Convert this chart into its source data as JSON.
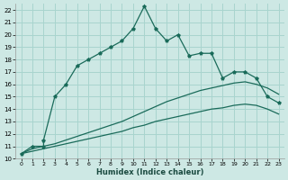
{
  "xlabel": "Humidex (Indice chaleur)",
  "bg_color": "#cde8e4",
  "grid_color": "#a8d4ce",
  "line_color": "#1a6b5a",
  "xlim": [
    -0.5,
    23.5
  ],
  "ylim": [
    10.0,
    22.5
  ],
  "xticks": [
    0,
    1,
    2,
    3,
    4,
    5,
    6,
    7,
    8,
    9,
    10,
    11,
    12,
    13,
    14,
    15,
    16,
    17,
    18,
    19,
    20,
    21,
    22,
    23
  ],
  "yticks": [
    10,
    11,
    12,
    13,
    14,
    15,
    16,
    17,
    18,
    19,
    20,
    21,
    22
  ],
  "line1_x": [
    0,
    1,
    2,
    2,
    3,
    4,
    5,
    6,
    7,
    8,
    9,
    10,
    11,
    12,
    13,
    14,
    15,
    16,
    17,
    18,
    19,
    20,
    21,
    22,
    23
  ],
  "line1_y": [
    10.4,
    11.0,
    11.0,
    11.5,
    15.0,
    16.0,
    17.5,
    18.0,
    18.5,
    19.0,
    19.5,
    20.5,
    22.3,
    20.5,
    19.5,
    20.0,
    18.3,
    18.5,
    18.5,
    16.5,
    17.0,
    17.0,
    16.5,
    15.0,
    14.5
  ],
  "line2_x": [
    0,
    1,
    2,
    3,
    4,
    5,
    6,
    7,
    8,
    9,
    10,
    11,
    12,
    13,
    14,
    15,
    16,
    17,
    18,
    19,
    20,
    21,
    22,
    23
  ],
  "line2_y": [
    10.4,
    10.8,
    11.0,
    11.2,
    11.5,
    11.8,
    12.1,
    12.4,
    12.7,
    13.0,
    13.4,
    13.8,
    14.2,
    14.6,
    14.9,
    15.2,
    15.5,
    15.7,
    15.9,
    16.1,
    16.2,
    16.0,
    15.7,
    15.2
  ],
  "line3_x": [
    0,
    1,
    2,
    3,
    4,
    5,
    6,
    7,
    8,
    9,
    10,
    11,
    12,
    13,
    14,
    15,
    16,
    17,
    18,
    19,
    20,
    21,
    22,
    23
  ],
  "line3_y": [
    10.4,
    10.6,
    10.8,
    11.0,
    11.2,
    11.4,
    11.6,
    11.8,
    12.0,
    12.2,
    12.5,
    12.7,
    13.0,
    13.2,
    13.4,
    13.6,
    13.8,
    14.0,
    14.1,
    14.3,
    14.4,
    14.3,
    14.0,
    13.6
  ]
}
